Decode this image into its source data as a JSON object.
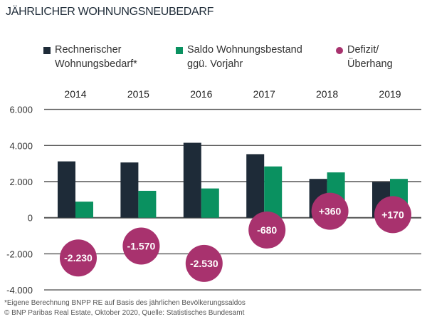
{
  "title": "JÄHRLICHER WOHNUNGSNEUBEDARF",
  "legend": [
    {
      "label": "Rechnerischer\nWohnungsbedarf*",
      "color": "#1e2b38",
      "shape": "square"
    },
    {
      "label": "Saldo Wohnungsbestand\nggü. Vorjahr",
      "color": "#0a9160",
      "shape": "square"
    },
    {
      "label": "Defizit/\nÜberhang",
      "color": "#a8326e",
      "shape": "circle"
    }
  ],
  "footnotes": {
    "note": "*Eigene Berechnung BNPP RE auf Basis des jährlichen Bevölkerungssaldos",
    "source": "© BNP Paribas Real Estate, Oktober 2020, Quelle: Statistisches Bundesamt"
  },
  "chart_data": {
    "type": "bar",
    "title": "JÄHRLICHER WOHNUNGSNEUBEDARF",
    "categories": [
      "2014",
      "2015",
      "2016",
      "2017",
      "2018",
      "2019"
    ],
    "series": [
      {
        "name": "Rechnerischer Wohnungsbedarf*",
        "values": [
          3120,
          3060,
          4150,
          3520,
          2150,
          1980
        ],
        "color": "#1e2b38"
      },
      {
        "name": "Saldo Wohnungsbestand ggü. Vorjahr",
        "values": [
          890,
          1490,
          1620,
          2840,
          2510,
          2150
        ],
        "color": "#0a9160"
      },
      {
        "name": "Defizit/ Überhang",
        "type": "bubble",
        "values": [
          -2230,
          -1570,
          -2530,
          -680,
          360,
          170
        ],
        "labels": [
          "-2.230",
          "-1.570",
          "-2.530",
          "-680",
          "+360",
          "+170"
        ],
        "color": "#a8326e"
      }
    ],
    "yticks": [
      6000,
      4000,
      2000,
      0,
      -2000,
      -4000
    ],
    "ytick_labels": [
      "6.000",
      "4.000",
      "2.000",
      "0",
      "-2.000",
      "-4.000"
    ],
    "ylim": [
      -4000,
      6000
    ],
    "grid": true,
    "category_axis_position": "top",
    "legend_position": "top"
  }
}
